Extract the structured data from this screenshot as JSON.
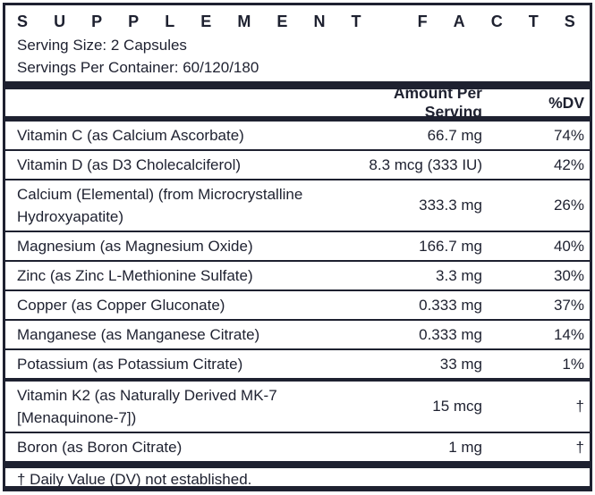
{
  "title": "SUPPLEMENT FACTS",
  "serving": {
    "size_label": "Serving Size: 2 Capsules",
    "per_container_label": "Servings Per Container: 60/120/180"
  },
  "columns": {
    "amount_header": "Amount Per Serving",
    "dv_header": "%DV"
  },
  "nutrients": [
    {
      "name": "Vitamin C (as Calcium Ascorbate)",
      "amount": "66.7 mg",
      "dv": "74%"
    },
    {
      "name": "Vitamin D (as D3 Cholecalciferol)",
      "amount": "8.3 mcg (333 IU)",
      "dv": "42%"
    },
    {
      "name": "Calcium (Elemental) (from Microcrystalline\nHydroxyapatite)",
      "amount": "333.3 mg",
      "dv": "26%"
    },
    {
      "name": "Magnesium (as Magnesium Oxide)",
      "amount": "166.7 mg",
      "dv": "40%"
    },
    {
      "name": "Zinc (as Zinc L-Methionine Sulfate)",
      "amount": "3.3 mg",
      "dv": "30%"
    },
    {
      "name": "Copper (as Copper Gluconate)",
      "amount": "0.333 mg",
      "dv": "37%"
    },
    {
      "name": "Manganese (as Manganese Citrate)",
      "amount": "0.333 mg",
      "dv": "14%"
    },
    {
      "name": "Potassium (as Potassium Citrate)",
      "amount": "33 mg",
      "dv": "1%"
    },
    {
      "name": "Vitamin K2 (as Naturally Derived MK-7\n[Menaquinone-7])",
      "amount": "15 mcg",
      "dv": "†",
      "thick_divider_above": true
    },
    {
      "name": "Boron (as Boron Citrate)",
      "amount": "1 mg",
      "dv": "†"
    }
  ],
  "footnote": "† Daily Value (DV) not established.",
  "colors": {
    "ink": "#1e2130",
    "background": "#ffffff"
  }
}
